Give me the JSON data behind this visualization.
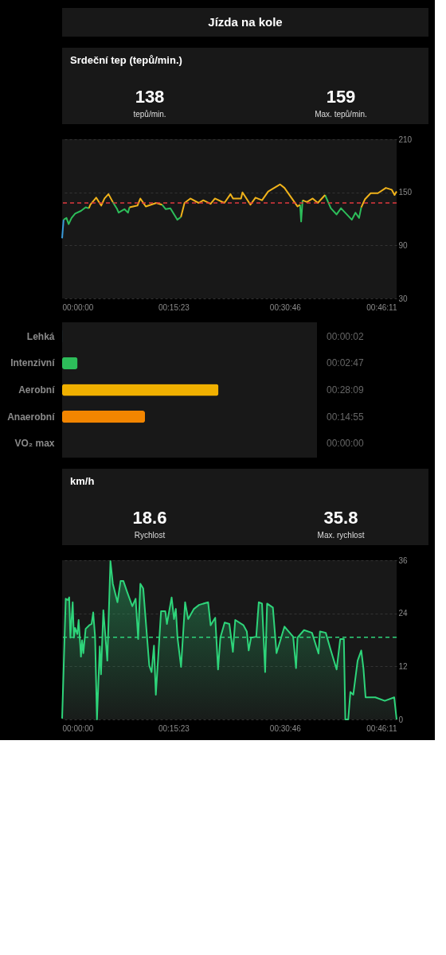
{
  "chart_data": [
    {
      "type": "line",
      "title": "Srdeční tep (tepů/min.)",
      "annotations": [
        "Jízda na kole",
        "138",
        "tepů/min.",
        "159",
        "Max. tepů/min."
      ],
      "x": [
        0,
        0.2,
        0.6,
        0.9,
        1.3,
        1.8,
        2.6,
        3.25,
        3.7,
        3.9,
        4.7,
        5.4,
        5.85,
        6.4,
        7.0,
        7.6,
        7.8,
        8.6,
        9.1,
        9.3,
        10.4,
        10.8,
        11.55,
        13.0,
        13.8,
        14.3,
        14.95,
        15.9,
        16.4,
        16.9,
        17.7,
        18.85,
        19.5,
        20.5,
        21.1,
        22.4,
        23.25,
        23.6,
        24.7,
        24.9,
        26.0,
        26.7,
        27.6,
        28.45,
        30.1,
        30.7,
        31.9,
        32.5,
        32.85,
        33.0,
        33.2,
        33.8,
        34.6,
        35.3,
        36.3,
        37.1,
        37.9,
        38.5,
        39.2,
        40.0,
        40.5,
        41.0,
        41.3,
        41.8,
        42.6,
        43.6,
        44.7,
        45.5,
        45.9,
        46.18
      ],
      "series": [
        {
          "color": "#3a9ad9",
          "values": [
            98,
            119,
            null,
            null,
            null,
            null,
            null,
            null,
            null,
            null,
            null,
            null,
            null,
            null,
            null,
            null,
            null,
            null,
            null,
            null,
            null,
            null,
            null,
            null,
            null,
            null,
            null,
            null,
            null,
            null,
            null,
            null,
            null,
            null,
            null,
            null,
            null,
            null,
            null,
            null,
            null,
            null,
            null,
            null,
            null,
            null,
            null,
            null,
            null,
            null,
            null,
            null,
            null,
            null,
            null,
            null,
            null,
            null,
            null,
            null,
            null,
            null,
            null,
            null,
            null,
            null,
            null,
            null,
            null,
            null
          ]
        },
        {
          "color": "#2dbd5a",
          "values": [
            null,
            119,
            121,
            114,
            121,
            126,
            129,
            133,
            132,
            null,
            null,
            null,
            null,
            null,
            139,
            131,
            127,
            131,
            127,
            133,
            null,
            null,
            null,
            null,
            136,
            131,
            132,
            119,
            122,
            null,
            null,
            null,
            null,
            null,
            null,
            null,
            null,
            null,
            null,
            null,
            null,
            null,
            null,
            null,
            null,
            null,
            null,
            null,
            136,
            117,
            141,
            null,
            null,
            null,
            147,
            132,
            125,
            132,
            126,
            119,
            127,
            121,
            133,
            null,
            null,
            null,
            null,
            null,
            null,
            null
          ]
        },
        {
          "color": "#f0b21a",
          "values": [
            null,
            null,
            null,
            null,
            null,
            null,
            null,
            null,
            132,
            136,
            144,
            135,
            143,
            148,
            139,
            null,
            null,
            null,
            null,
            133,
            135,
            143,
            134,
            138,
            136,
            null,
            null,
            null,
            122,
            138,
            143,
            138,
            141,
            137,
            143,
            138,
            148,
            143,
            143,
            150,
            136,
            144,
            141,
            151,
            159,
            155,
            141,
            134,
            136,
            null,
            141,
            139,
            143,
            138,
            147,
            null,
            null,
            null,
            null,
            null,
            null,
            null,
            133,
            142,
            149,
            149,
            155,
            153,
            147,
            151
          ]
        }
      ],
      "xlim": [
        0,
        46.183
      ],
      "xticks": [
        {
          "value": 0,
          "label": "00:00:00"
        },
        {
          "value": 15.383,
          "label": "00:15:23"
        },
        {
          "value": 30.767,
          "label": "00:30:46"
        },
        {
          "value": 46.183,
          "label": "00:46:11"
        }
      ],
      "ylim": [
        30,
        210
      ],
      "yticks": [
        30,
        90,
        150,
        210
      ],
      "ref_lines": [
        {
          "axis": "y",
          "value": 138,
          "color": "#e0393e",
          "line_style": "dashed"
        }
      ],
      "grid": "y"
    },
    {
      "type": "bar",
      "orientation": "horizontal",
      "categories": [
        "Lehká",
        "Intenzivní",
        "Aerobní",
        "Anaerobní",
        "VO₂ max"
      ],
      "values": [
        2,
        167,
        1689,
        895,
        0
      ],
      "colors": [
        "#3a9ad9",
        "#2dbd5a",
        "#f0b000",
        "#f28500",
        "#e0393e"
      ],
      "value_labels": [
        "00:00:02",
        "00:02:47",
        "00:28:09",
        "00:14:55",
        "00:00:00"
      ],
      "xlim": [
        0,
        2753
      ],
      "tick_labels": "y"
    },
    {
      "type": "area",
      "title": "km/h",
      "annotations": [
        "18.6",
        "Rychlost",
        "35.8",
        "Max. rychlost"
      ],
      "x": [
        0,
        0.5,
        0.8,
        0.98,
        1.14,
        1.46,
        1.63,
        1.79,
        2.1,
        2.28,
        2.6,
        2.76,
        2.93,
        3.25,
        3.74,
        4.07,
        4.29,
        4.55,
        4.81,
        5.2,
        5.37,
        5.69,
        6.24,
        6.67,
        7.0,
        7.64,
        8.07,
        8.46,
        8.94,
        9.69,
        10.15,
        10.5,
        10.8,
        11.2,
        12.03,
        12.35,
        12.68,
        12.94,
        13.66,
        14.24,
        14.47,
        15.12,
        15.45,
        15.7,
        15.93,
        16.42,
        16.98,
        17.4,
        18.2,
        18.9,
        20.16,
        20.5,
        21.14,
        21.53,
        21.85,
        22.44,
        23.09,
        23.58,
        23.9,
        25.04,
        25.5,
        25.76,
        26.08,
        26.8,
        27.15,
        27.6,
        28.03,
        28.3,
        29.1,
        29.6,
        30.7,
        31.9,
        32.3,
        32.5,
        33.4,
        34.5,
        35.4,
        35.6,
        36.4,
        37.1,
        37.9,
        38.4,
        38.9,
        39.1,
        39.5,
        39.8,
        40.2,
        40.8,
        41.3,
        41.6,
        41.9,
        43.25,
        44.55,
        45.85,
        46.18
      ],
      "series": [
        {
          "color": "#2ed47a",
          "values": [
            0.2,
            27.3,
            27,
            27.6,
            18.5,
            26.5,
            18.5,
            20.7,
            19.3,
            22.5,
            14.2,
            17.9,
            15,
            20.5,
            21.3,
            21.6,
            24.2,
            18.7,
            0,
            16.5,
            10.2,
            24.7,
            13.3,
            35.8,
            30.7,
            26.5,
            31.3,
            31.3,
            29,
            25.6,
            27.3,
            18.2,
            30.7,
            29.6,
            12.2,
            10.7,
            16.7,
            5.6,
            24.5,
            24.5,
            21.6,
            27.6,
            22.7,
            25,
            18.5,
            11.9,
            26.5,
            22.7,
            25,
            25.9,
            26.5,
            21.3,
            23,
            11.3,
            18.5,
            21.9,
            21.6,
            15.3,
            22.5,
            21.3,
            19.9,
            15.6,
            18.5,
            18.7,
            26.5,
            26.2,
            10.7,
            26.2,
            25.3,
            15,
            21,
            18.7,
            11.6,
            18.5,
            20.2,
            19.6,
            14.9,
            19.9,
            19.6,
            15.6,
            11.3,
            18.2,
            18.2,
            0,
            0,
            6.2,
            5.6,
            13.3,
            15.6,
            11.6,
            5,
            5,
            4.2,
            5,
            0
          ]
        }
      ],
      "xlim": [
        0,
        46.183
      ],
      "xticks": [
        {
          "value": 0,
          "label": "00:00:00"
        },
        {
          "value": 15.383,
          "label": "00:15:23"
        },
        {
          "value": 30.767,
          "label": "00:30:46"
        },
        {
          "value": 46.183,
          "label": "00:46:11"
        }
      ],
      "ylim": [
        0,
        36
      ],
      "yticks": [
        0,
        12,
        24,
        36
      ],
      "ref_lines": [
        {
          "axis": "y",
          "value": 18.6,
          "color": "#2ed47a",
          "line_style": "dashed"
        }
      ],
      "grid": "y"
    }
  ]
}
